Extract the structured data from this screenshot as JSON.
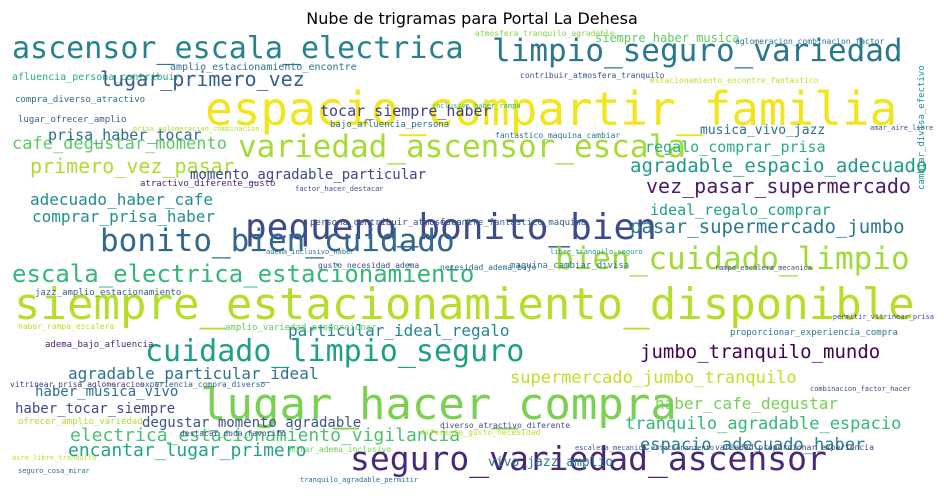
{
  "title": "Nube de trigramas para Portal La Dehesa",
  "words": [
    {
      "text": "espacio_compartir_familia",
      "color": "#f1e51d",
      "weight": 44
    },
    {
      "text": "siempre_estacionamiento_disponible",
      "color": "#b5de2b",
      "weight": 42
    },
    {
      "text": "lugar_hacer_compra",
      "color": "#7ad151",
      "weight": 42
    },
    {
      "text": "pequeno_bonito_bien",
      "color": "#3e4a89",
      "weight": 34
    },
    {
      "text": "limpio_seguro_variedad",
      "color": "#2a788e",
      "weight": 30
    },
    {
      "text": "ascensor_escala_electrica",
      "color": "#26828e",
      "weight": 30
    },
    {
      "text": "bonito_bien_cuidado",
      "color": "#31688e",
      "weight": 31
    },
    {
      "text": "variedad_ascensor_escala",
      "color": "#a5db36",
      "weight": 30
    },
    {
      "text": "bien_cuidado_limpio",
      "color": "#9fda3a",
      "weight": 30
    },
    {
      "text": "seguro_variedad_ascensor",
      "color": "#482878",
      "weight": 32
    },
    {
      "text": "cuidado_limpio_seguro",
      "color": "#1f9e89",
      "weight": 28
    },
    {
      "text": "escala_electrica_estacionamiento",
      "color": "#35b779",
      "weight": 24
    },
    {
      "text": "primero_vez_pasar",
      "color": "#addc30",
      "weight": 19
    },
    {
      "text": "lugar_primero_vez",
      "color": "#365c8d",
      "weight": 19
    },
    {
      "text": "vez_pasar_supermercado",
      "color": "#481b6d",
      "weight": 19
    },
    {
      "text": "agradable_espacio_adecuado",
      "color": "#1f9a8a",
      "weight": 18
    },
    {
      "text": "pasar_supermercado_jumbo",
      "color": "#2a788e",
      "weight": 18
    },
    {
      "text": "cafe_degustar_momento",
      "color": "#5ec962",
      "weight": 17
    },
    {
      "text": "jumbo_tranquilo_mundo",
      "color": "#440154",
      "weight": 18
    },
    {
      "text": "supermercado_jumbo_tranquilo",
      "color": "#bddf26",
      "weight": 17
    },
    {
      "text": "tranquilo_agradable_espacio",
      "color": "#35b779",
      "weight": 17
    },
    {
      "text": "electrica_estacionamiento_vigilancia",
      "color": "#4ac16d",
      "weight": 17
    },
    {
      "text": "agradable_particular_ideal",
      "color": "#2c728e",
      "weight": 16
    },
    {
      "text": "encantar_lugar_primero",
      "color": "#20a486",
      "weight": 17
    },
    {
      "text": "espacio_adecuado_haber",
      "color": "#277f8e",
      "weight": 16
    },
    {
      "text": "adecuado_haber_cafe",
      "color": "#228c8d",
      "weight": 15
    },
    {
      "text": "comprar_prisa_haber",
      "color": "#21918c",
      "weight": 15
    },
    {
      "text": "particular_ideal_regalo",
      "color": "#25858e",
      "weight": 15
    },
    {
      "text": "ideal_regalo_comprar",
      "color": "#1fa187",
      "weight": 14
    },
    {
      "text": "regalo_comprar_prisa",
      "color": "#29af7f",
      "weight": 14
    },
    {
      "text": "haber_cafe_degustar",
      "color": "#75d054",
      "weight": 15
    },
    {
      "text": "degustar_momento_agradable",
      "color": "#3b528b",
      "weight": 14
    },
    {
      "text": "haber_musica_vivo",
      "color": "#2d708e",
      "weight": 14
    },
    {
      "text": "haber_tocar_siempre",
      "color": "#3e4989",
      "weight": 14
    },
    {
      "text": "prisa_haber_tocar",
      "color": "#2e6e8e",
      "weight": 14
    },
    {
      "text": "momento_agradable_particular",
      "color": "#3f4788",
      "weight": 13
    },
    {
      "text": "tocar_siempre_haber",
      "color": "#424086",
      "weight": 13
    },
    {
      "text": "musica_vivo_jazz",
      "color": "#2c718e",
      "weight": 13
    },
    {
      "text": "siempre_haber_musica",
      "color": "#60ca60",
      "weight": 12
    },
    {
      "text": "vivo_jazz_amplio",
      "color": "#287c8e",
      "weight": 12
    },
    {
      "text": "amplio_estacionamiento_encontre",
      "color": "#2e6f8e",
      "weight": 9
    },
    {
      "text": "afluencia_persona_contribuir",
      "color": "#25ab82",
      "weight": 9
    },
    {
      "text": "compra_diverso_atractivo",
      "color": "#2f6c8e",
      "weight": 8
    },
    {
      "text": "lugar_ofrecer_amplio",
      "color": "#365d8d",
      "weight": 8
    },
    {
      "text": "atractivo_diferente_gusto",
      "color": "#481f70",
      "weight": 8
    },
    {
      "text": "bajo_afluencia_persona",
      "color": "#2d718e",
      "weight": 8
    },
    {
      "text": "fantastico_maquina_cambiar",
      "color": "#2a768e",
      "weight": 8
    },
    {
      "text": "persona_contribuir_atmosfera",
      "color": "#3e4a89",
      "weight": 8
    },
    {
      "text": "encontre_fantastico_maquina",
      "color": "#355f8d",
      "weight": 8
    },
    {
      "text": "maquina_cambiar_divisa",
      "color": "#2a778e",
      "weight": 8
    },
    {
      "text": "necesidad_adema_bajo",
      "color": "#31688e",
      "weight": 7
    },
    {
      "text": "gusto_necesidad_adema",
      "color": "#3d4d8a",
      "weight": 7
    },
    {
      "text": "jazz_amplio_estacionamiento",
      "color": "#34618d",
      "weight": 8
    },
    {
      "text": "haber_rampa_escalera",
      "color": "#b8de29",
      "weight": 7
    },
    {
      "text": "amplio_variedad_proporcionar",
      "color": "#5ec962",
      "weight": 8
    },
    {
      "text": "proporcionar_experiencia_compra",
      "color": "#2a788e",
      "weight": 8
    },
    {
      "text": "adema_bajo_afluencia",
      "color": "#482475",
      "weight": 8
    },
    {
      "text": "vitrinear_prisa_aglomeracion",
      "color": "#453781",
      "weight": 7
    },
    {
      "text": "ofrecer_amplio_variedad",
      "color": "#addc30",
      "weight": 8
    },
    {
      "text": "experiencia_compra_diverso",
      "color": "#33638d",
      "weight": 7
    },
    {
      "text": "destacar_duda_favorito",
      "color": "#3b518b",
      "weight": 7
    },
    {
      "text": "diferente_gusto_necesidad",
      "color": "#bddf26",
      "weight": 7
    },
    {
      "text": "mirar_adema_inclusivo",
      "color": "#6ece58",
      "weight": 7
    },
    {
      "text": "diverso_atractivo_diferente",
      "color": "#3e4c8a",
      "weight": 7
    },
    {
      "text": "escalera_mecanica_estacionamiento",
      "color": "#38598c",
      "weight": 6
    },
    {
      "text": "variedad_proporcionar_experiencia",
      "color": "#404688",
      "weight": 7
    },
    {
      "text": "tranquilo_agradable_permitir",
      "color": "#2e6d8e",
      "weight": 6
    },
    {
      "text": "seguro_cosa_mirar",
      "color": "#2d708e",
      "weight": 6
    },
    {
      "text": "aire_libre_tranquilo",
      "color": "#c2df23",
      "weight": 6
    },
    {
      "text": "aglomeracion_combinacion_factor",
      "color": "#2c728e",
      "weight": 7
    },
    {
      "text": "estacionamiento_encontre_fantastico",
      "color": "#c0df25",
      "weight": 7
    },
    {
      "text": "contribuir_atmosfera_tranquilo",
      "color": "#3c4f8a",
      "weight": 7
    },
    {
      "text": "atmosfera_tranquilo_agradable",
      "color": "#84d44b",
      "weight": 7
    },
    {
      "text": "amar_aire_libre",
      "color": "#365c8d",
      "weight": 6
    },
    {
      "text": "cambiar_divisa_efectivo",
      "color": "#21918c",
      "weight": 8
    },
    {
      "text": "factor_hacer_destacar",
      "color": "#3b518b",
      "weight": 6
    },
    {
      "text": "adema_inclusivo_haber",
      "color": "#2a778e",
      "weight": 6
    },
    {
      "text": "inclusivo_haber_rampa",
      "color": "#37b878",
      "weight": 6
    },
    {
      "text": "libre_tranquilo_seguro",
      "color": "#1fa088",
      "weight": 6
    },
    {
      "text": "rampa_escalera_mecanica",
      "color": "#3e4a89",
      "weight": 6
    },
    {
      "text": "prisa_aglomeracion_combinacion",
      "color": "#b5de2b",
      "weight": 6
    },
    {
      "text": "combinacion_factor_hacer",
      "color": "#3d4e8a",
      "weight": 6
    },
    {
      "text": "permitir_vitrinear_prisa",
      "color": "#3e4a89",
      "weight": 6
    }
  ]
}
